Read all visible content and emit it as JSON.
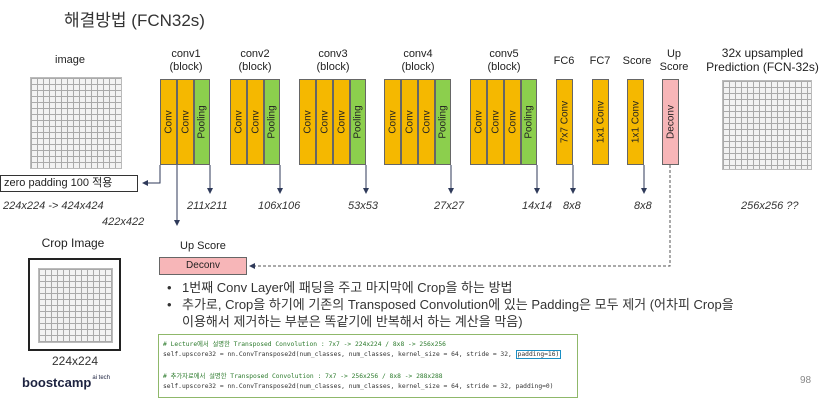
{
  "title": "해결방법 (FCN32s)",
  "headers": {
    "image": "image",
    "conv1": "conv1\n(block)",
    "conv2": "conv2\n(block)",
    "conv3": "conv3\n(block)",
    "conv4": "conv4\n(block)",
    "conv5": "conv5\n(block)",
    "fc6": "FC6",
    "fc7": "FC7",
    "score": "Score",
    "upscore": "Up\nScore",
    "prediction": "32x upsampled\nPrediction (FCN-32s)"
  },
  "layer_labels": {
    "conv": "Conv",
    "pooling": "Pooling",
    "fc6": "7x7 Conv",
    "fc7": "1x1 Conv",
    "score": "1x1 Conv",
    "deconv": "Deconv"
  },
  "zero_padding_label": "zero padding 100 적용",
  "dims": {
    "input": "224x224 -> 424x424",
    "input2": "422x422",
    "conv1": "211x211",
    "conv2": "106x106",
    "conv3": "53x53",
    "conv4": "27x27",
    "conv5": "14x14",
    "fc6": "8x8",
    "score": "8x8",
    "pred": "256x256 ??"
  },
  "crop": {
    "title": "Crop Image",
    "size": "224x224"
  },
  "upscore_box": {
    "title": "Up Score",
    "label": "Deconv"
  },
  "bullets": [
    "1번째 Conv Layer에 패딩을 주고 마지막에 Crop을 하는 방법",
    "추가로, Crop을 하기에 기존의 Transposed Convolution에 있는 Padding은 모두 제거 (어차피 Crop을",
    "이용해서 제거하는 부분은 똑같기에 반복해서 하는 계산을 막음)"
  ],
  "code": {
    "comment1": "# Lecture에서 설명한 Transposed Convolution : 7x7 -> 224x224 / 8x8 -> 256x256",
    "line1": "self.upscore32 = nn.ConvTranspose2d(num_classes, num_classes, kernel_size = 64, stride = 32,",
    "line1_highlight": "padding=16)",
    "comment2": "# 추가자료에서 설명한 Transposed Convolution : 7x7 -> 256x256 / 8x8 -> 288x288",
    "line2": "self.upscore32 = nn.ConvTranspose2d(num_classes, num_classes, kernel_size = 64, stride = 32, padding=0)"
  },
  "logo": {
    "text": "boostcamp",
    "sup": "ai tech"
  },
  "page_number": "98",
  "colors": {
    "conv": "#f5b800",
    "pooling": "#8ccf4d",
    "deconv": "#f7b6b8",
    "highlight": "#1a8fc4"
  }
}
